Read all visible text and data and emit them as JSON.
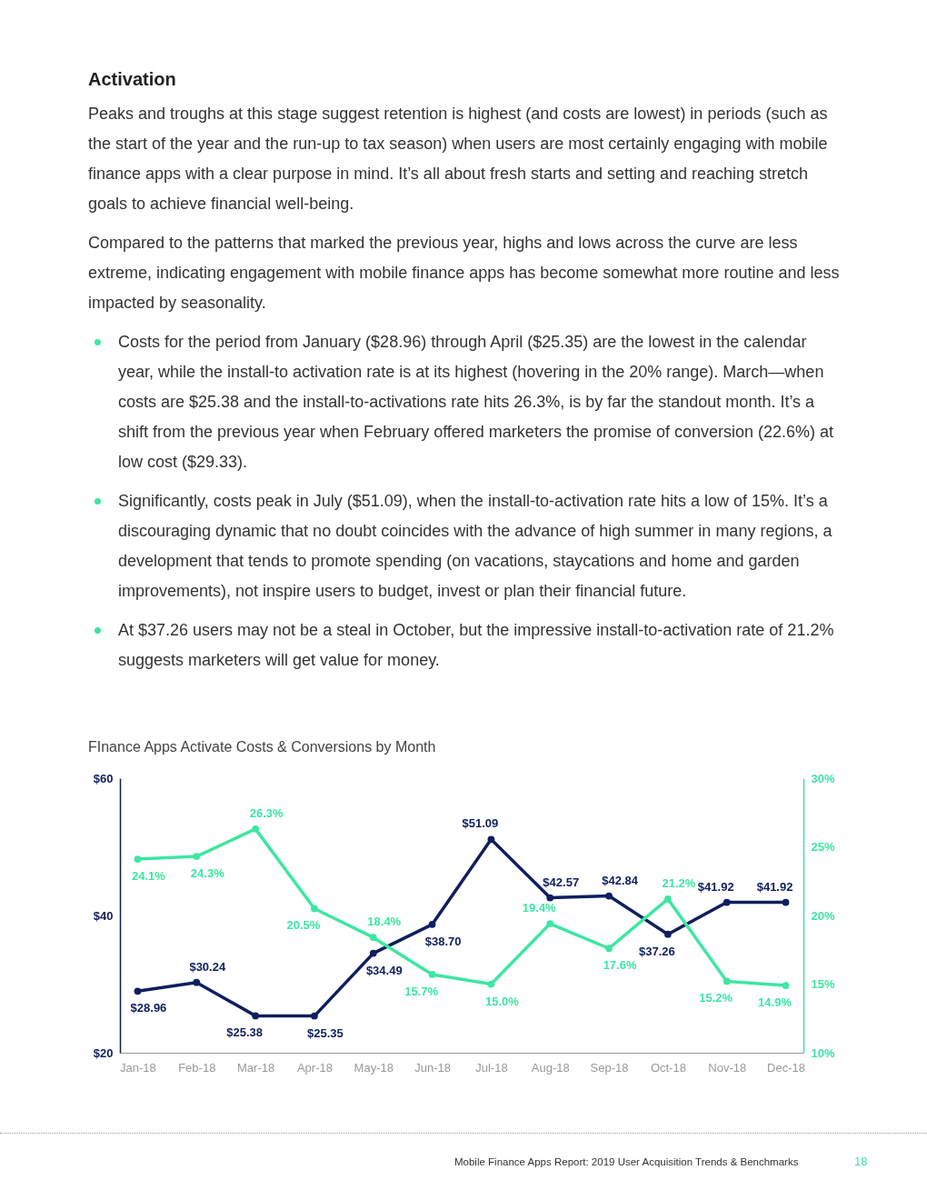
{
  "chart_data": {
    "type": "line",
    "title": "FInance Apps Activate Costs & Conversions by Month",
    "annotations": [
      "Activation",
      "Peaks and troughs at this stage suggest retention is highest (and costs are lowest) in periods (such as the start of the year and the run-up to tax season) when users are most certainly engaging with mobile finance apps with a clear purpose in mind. It’s all about fresh starts and setting and reaching stretch goals to achieve financial well-being.",
      "Compared to the patterns that marked the previous year, highs and lows across the curve are less extreme, indicating engagement with mobile finance apps has become somewhat more routine and less impacted by seasonality.",
      "Costs for the period from January ($28.96) through April ($25.35) are the lowest in the calendar year, while the install-to activation rate is at its highest (hovering in the 20% range). March—when costs are $25.38 and the install-to-activations rate hits 26.3%, is by far the standout month. It’s a shift from the previous year when February offered marketers the promise of conversion (22.6%) at low cost ($29.33).",
      "Significantly, costs peak in July ($51.09), when the install-to-activation rate hits a low of 15%. It’s a discouraging dynamic that no doubt coincides with the advance of high summer in many regions, a development that tends to promote spending (on vacations, staycations and home and garden improvements), not inspire users to budget, invest or plan their financial future.",
      "At $37.26 users may not be a steal in October, but the impressive install-to-activation rate of 21.2% suggests marketers will get value for money.",
      "Mobile Finance Apps Report: 2019 User Acquisition Trends & Benchmarks",
      "18"
    ],
    "categories": [
      "Jan-18",
      "Feb-18",
      "Mar-18",
      "Apr-18",
      "May-18",
      "Jun-18",
      "Jul-18",
      "Aug-18",
      "Sep-18",
      "Oct-18",
      "Nov-18",
      "Dec-18"
    ],
    "series": [
      {
        "color": "#0f1f5e",
        "values": [
          28.96,
          30.24,
          25.38,
          25.35,
          34.49,
          38.7,
          51.09,
          42.57,
          42.84,
          37.26,
          41.92,
          41.92
        ],
        "value_labels": [
          "$28.96",
          "$30.24",
          "$25.38",
          "$25.35",
          "$34.49",
          "$38.70",
          "$51.09",
          "$42.57",
          "$42.84",
          "$37.26",
          "$41.92",
          "$41.92"
        ]
      },
      {
        "color": "#3ee6a3",
        "axis": "y2",
        "values": [
          24.1,
          24.3,
          26.3,
          20.5,
          18.4,
          15.7,
          15.0,
          19.4,
          17.6,
          21.2,
          15.2,
          14.9
        ],
        "value_labels": [
          "24.1%",
          "24.3%",
          "26.3%",
          "20.5%",
          "18.4%",
          "15.7%",
          "15.0%",
          "19.4%",
          "17.6%",
          "21.2%",
          "15.2%",
          "14.9%"
        ]
      }
    ],
    "ylim": [
      20,
      60
    ],
    "yticks": [
      {
        "value": 20,
        "label": "$20"
      },
      {
        "value": 40,
        "label": "$40"
      },
      {
        "value": 60,
        "label": "$60"
      }
    ],
    "y2lim": [
      10,
      30
    ],
    "y2ticks": [
      {
        "value": 10,
        "label": "10%"
      },
      {
        "value": 15,
        "label": "15%"
      },
      {
        "value": 20,
        "label": "20%"
      },
      {
        "value": 25,
        "label": "25%"
      },
      {
        "value": 30,
        "label": "30%"
      }
    ],
    "marker": "circle"
  }
}
